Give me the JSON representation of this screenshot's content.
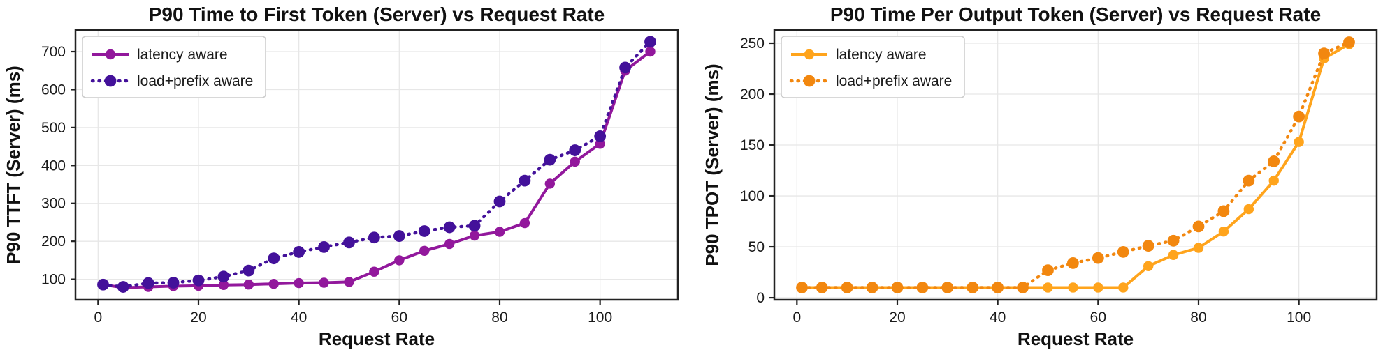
{
  "page": {
    "background": "#ffffff"
  },
  "chart_data": [
    {
      "type": "line",
      "title": "P90 Time to First Token (Server) vs Request Rate",
      "xlabel": "Request Rate",
      "ylabel": "P90 TTFT (Server) (ms)",
      "x": [
        1,
        5,
        10,
        15,
        20,
        25,
        30,
        35,
        40,
        45,
        50,
        55,
        60,
        65,
        70,
        75,
        80,
        85,
        90,
        95,
        100,
        105,
        110
      ],
      "series": [
        {
          "name": "latency aware",
          "style": "solid",
          "color": "#92189c",
          "values": [
            86,
            78,
            80,
            82,
            83,
            85,
            86,
            88,
            90,
            91,
            93,
            120,
            150,
            175,
            193,
            215,
            225,
            248,
            352,
            410,
            457,
            650,
            700
          ]
        },
        {
          "name": "load+prefix aware",
          "style": "dotted",
          "color": "#43119a",
          "values": [
            86,
            80,
            90,
            91,
            97,
            107,
            123,
            155,
            172,
            185,
            197,
            210,
            214,
            227,
            237,
            241,
            305,
            360,
            415,
            440,
            477,
            658,
            726
          ]
        }
      ],
      "xlim": [
        -4.5,
        115.5
      ],
      "ylim": [
        46,
        757
      ],
      "xticks": [
        0,
        20,
        40,
        60,
        80,
        100
      ],
      "yticks": [
        100,
        200,
        300,
        400,
        500,
        600,
        700
      ],
      "grid": true,
      "legend_position": "upper left"
    },
    {
      "type": "line",
      "title": "P90 Time Per Output Token (Server) vs Request Rate",
      "xlabel": "Request Rate",
      "ylabel": "P90 TPOT (Server) (ms)",
      "x": [
        1,
        5,
        10,
        15,
        20,
        25,
        30,
        35,
        40,
        45,
        50,
        55,
        60,
        65,
        70,
        75,
        80,
        85,
        90,
        95,
        100,
        105,
        110
      ],
      "series": [
        {
          "name": "latency aware",
          "style": "solid",
          "color": "#ffa41c",
          "values": [
            10,
            10,
            10,
            10,
            10,
            10,
            10,
            10,
            10,
            10,
            10,
            10,
            10,
            10,
            31,
            42,
            49,
            65,
            87,
            115,
            153,
            235,
            249
          ]
        },
        {
          "name": "load+prefix aware",
          "style": "dotted",
          "color": "#f2870f",
          "values": [
            10,
            10,
            10,
            10,
            10,
            10,
            10,
            10,
            10,
            10,
            27,
            34,
            39,
            45,
            51,
            56,
            70,
            85,
            115,
            134,
            178,
            240,
            251
          ]
        }
      ],
      "xlim": [
        -4.5,
        115.5
      ],
      "ylim": [
        -2,
        263
      ],
      "xticks": [
        0,
        20,
        40,
        60,
        80,
        100
      ],
      "yticks": [
        0,
        50,
        100,
        150,
        200,
        250
      ],
      "grid": true,
      "legend_position": "upper left"
    }
  ]
}
